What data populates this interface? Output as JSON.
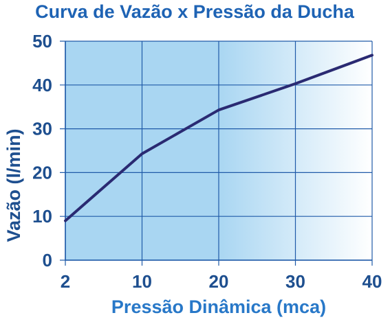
{
  "chart_data": {
    "type": "line",
    "title": "Curva de Vazão x Pressão da Ducha",
    "xlabel": "Pressão Dinâmica (mca)",
    "ylabel": "Vazão (l/min)",
    "x_ticks": [
      2,
      10,
      20,
      30,
      40
    ],
    "y_ticks": [
      0,
      10,
      20,
      30,
      40,
      50
    ],
    "ylim": [
      0,
      50
    ],
    "grid": true,
    "series": [
      {
        "x": [
          2,
          10,
          20,
          30,
          40
        ],
        "y": [
          9,
          24.3,
          34.3,
          40.3,
          46.8
        ]
      }
    ]
  },
  "colors": {
    "title": "#1e63b4",
    "axis_text": "#1e4f8f",
    "xlabel": "#2878c8",
    "line": "#2a2a72",
    "grid": "#1f5aa8",
    "fill_dark": "#a9d6f2",
    "fill_light": "#ffffff"
  }
}
